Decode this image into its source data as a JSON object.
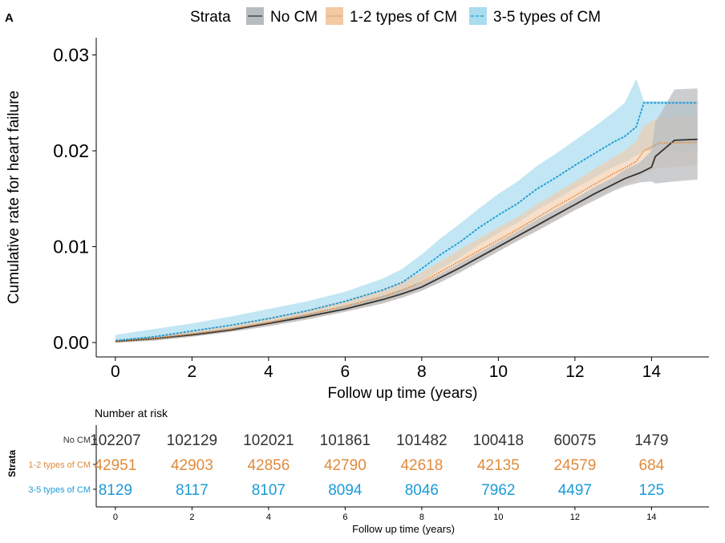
{
  "panel_label": "A",
  "colors": {
    "no_cm": "#333333",
    "cm_1_2": "#e08a3c",
    "cm_3_5": "#1a9bd7",
    "band_no_cm": "#b9bcbf",
    "band_cm_1_2": "#f3c9a6",
    "band_cm_3_5": "#a8dcee",
    "axis": "#000000"
  },
  "chart_data": {
    "type": "line",
    "xlabel": "Follow up time (years)",
    "ylabel": "Cumulative rate for heart failure",
    "xlim": [
      -0.5,
      15.5
    ],
    "ylim": [
      -0.0015,
      0.0318
    ],
    "x_ticks": [
      0,
      2,
      4,
      6,
      8,
      10,
      12,
      14
    ],
    "x_tick_labels": [
      "0",
      "2",
      "4",
      "6",
      "8",
      "10",
      "12",
      "14"
    ],
    "y_ticks": [
      0,
      0.01,
      0.02,
      0.03
    ],
    "y_tick_labels": [
      "0.00",
      "0.01",
      "0.02",
      "0.03"
    ],
    "grid": false,
    "legend": {
      "position": "top",
      "title": "Strata",
      "entries": [
        "No CM",
        "1-2 types of CM",
        "3-5 types of CM"
      ]
    },
    "series": [
      {
        "name": "No CM",
        "x": [
          0,
          1,
          2,
          3,
          4,
          5,
          6,
          7,
          7.5,
          8,
          8.5,
          9,
          9.5,
          10,
          10.5,
          11,
          11.5,
          12,
          12.5,
          13,
          13.3,
          13.7,
          14.0,
          14.1,
          14.6,
          15.2
        ],
        "y": [
          0.0001,
          0.0004,
          0.0008,
          0.0013,
          0.002,
          0.0027,
          0.0035,
          0.0045,
          0.0051,
          0.0058,
          0.0068,
          0.0078,
          0.0089,
          0.01,
          0.0111,
          0.0122,
          0.0133,
          0.0144,
          0.0155,
          0.0165,
          0.0171,
          0.0177,
          0.0183,
          0.0194,
          0.0211,
          0.0212
        ],
        "lower": [
          0.0,
          0.0002,
          0.0006,
          0.0011,
          0.0017,
          0.0024,
          0.0032,
          0.0041,
          0.0047,
          0.0054,
          0.0063,
          0.0073,
          0.0084,
          0.0095,
          0.0106,
          0.0116,
          0.0127,
          0.0138,
          0.0148,
          0.0158,
          0.0163,
          0.0167,
          0.0168,
          0.0166,
          0.0168,
          0.017
        ],
        "upper": [
          0.0003,
          0.0006,
          0.001,
          0.0015,
          0.0022,
          0.003,
          0.0038,
          0.0049,
          0.0055,
          0.0062,
          0.0072,
          0.0083,
          0.0094,
          0.0105,
          0.0116,
          0.0128,
          0.0139,
          0.015,
          0.0162,
          0.0172,
          0.018,
          0.0188,
          0.02,
          0.023,
          0.0264,
          0.0265
        ]
      },
      {
        "name": "1-2 types of CM",
        "x": [
          0,
          1,
          2,
          3,
          4,
          5,
          6,
          7,
          7.5,
          8,
          8.5,
          9,
          9.5,
          10,
          10.5,
          11,
          11.5,
          12,
          12.5,
          13,
          13.3,
          13.6,
          13.8,
          14.2,
          15.2
        ],
        "y": [
          0.0001,
          0.0004,
          0.0009,
          0.0014,
          0.0021,
          0.0029,
          0.0038,
          0.0048,
          0.0055,
          0.0063,
          0.0074,
          0.0085,
          0.0096,
          0.0107,
          0.0118,
          0.013,
          0.0142,
          0.0153,
          0.0165,
          0.0176,
          0.0182,
          0.0189,
          0.02,
          0.0208,
          0.0209
        ],
        "lower": [
          0.0,
          0.0002,
          0.0006,
          0.0011,
          0.0017,
          0.0024,
          0.0032,
          0.0041,
          0.0047,
          0.0054,
          0.0064,
          0.0074,
          0.0084,
          0.0095,
          0.0106,
          0.0117,
          0.0128,
          0.0139,
          0.015,
          0.016,
          0.0165,
          0.017,
          0.0176,
          0.0182,
          0.0185
        ],
        "upper": [
          0.0003,
          0.0007,
          0.0012,
          0.0018,
          0.0026,
          0.0034,
          0.0044,
          0.0056,
          0.0064,
          0.0073,
          0.0085,
          0.0097,
          0.0109,
          0.012,
          0.0131,
          0.0144,
          0.0156,
          0.0168,
          0.0181,
          0.0193,
          0.02,
          0.021,
          0.0226,
          0.0235,
          0.0236
        ]
      },
      {
        "name": "3-5 types of CM",
        "x": [
          0,
          1,
          2,
          3,
          4,
          5,
          6,
          7,
          7.5,
          8,
          8.5,
          9,
          9.5,
          10,
          10.5,
          11,
          11.5,
          12,
          12.5,
          13,
          13.3,
          13.6,
          13.8,
          15.2
        ],
        "y": [
          0.0002,
          0.0006,
          0.0012,
          0.0018,
          0.0025,
          0.0033,
          0.0043,
          0.0055,
          0.0063,
          0.0077,
          0.0092,
          0.0105,
          0.012,
          0.0133,
          0.0145,
          0.016,
          0.0172,
          0.0185,
          0.0197,
          0.0209,
          0.0215,
          0.0225,
          0.025,
          0.025
        ],
        "lower": [
          0.0,
          0.0003,
          0.0008,
          0.0013,
          0.0019,
          0.0026,
          0.0035,
          0.0045,
          0.0052,
          0.0064,
          0.0077,
          0.0089,
          0.0102,
          0.0114,
          0.0125,
          0.0138,
          0.0149,
          0.0161,
          0.0172,
          0.0183,
          0.0188,
          0.0195,
          0.02,
          0.02
        ],
        "upper": [
          0.0008,
          0.0014,
          0.002,
          0.0027,
          0.0035,
          0.0043,
          0.0053,
          0.0067,
          0.0077,
          0.0092,
          0.0109,
          0.0124,
          0.014,
          0.0155,
          0.0168,
          0.0184,
          0.0197,
          0.0211,
          0.0225,
          0.024,
          0.025,
          0.0275,
          0.0252,
          0.0252
        ]
      }
    ]
  },
  "risk_table": {
    "title": "Number at risk",
    "ylabel": "Strata",
    "xlabel": "Follow up time (years)",
    "x_ticks": [
      0,
      2,
      4,
      6,
      8,
      10,
      12,
      14
    ],
    "x_tick_labels": [
      "0",
      "2",
      "4",
      "6",
      "8",
      "10",
      "12",
      "14"
    ],
    "rows": [
      {
        "label": "No CM",
        "values": [
          "102207",
          "102129",
          "102021",
          "101861",
          "101482",
          "100418",
          "60075",
          "1479"
        ]
      },
      {
        "label": "1-2 types of CM",
        "values": [
          "42951",
          "42903",
          "42856",
          "42790",
          "42618",
          "42135",
          "24579",
          "684"
        ]
      },
      {
        "label": "3-5 types of CM",
        "values": [
          "8129",
          "8117",
          "8107",
          "8094",
          "8046",
          "7962",
          "4497",
          "125"
        ]
      }
    ]
  }
}
